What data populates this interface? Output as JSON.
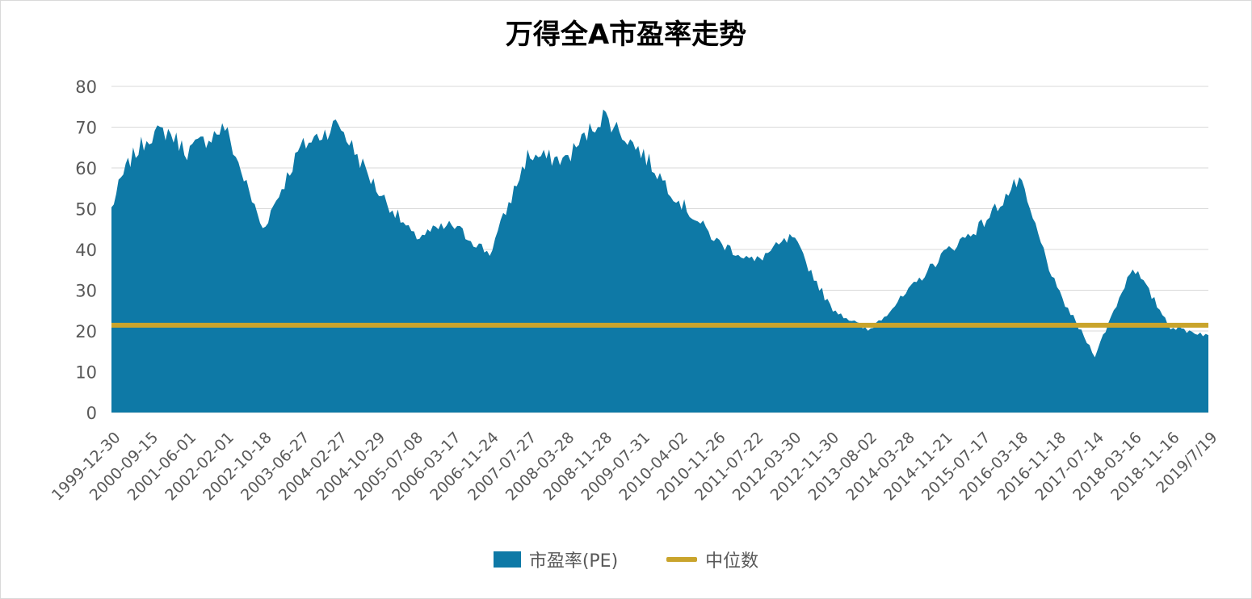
{
  "chart_data": {
    "type": "area",
    "title": "万得全A市盈率走势",
    "xlabel": "",
    "ylabel": "",
    "ylim": [
      0,
      80
    ],
    "yticks": [
      0,
      10,
      20,
      30,
      40,
      50,
      60,
      70,
      80
    ],
    "grid": true,
    "legend_position": "bottom",
    "colors": {
      "pe": "#0e79a6",
      "median": "#c9a42c",
      "grid": "#d9d9d9",
      "axis_text": "#595959"
    },
    "x_tick_labels": [
      "1999-12-30",
      "2000-09-15",
      "2001-06-01",
      "2002-02-01",
      "2002-10-18",
      "2003-06-27",
      "2004-02-27",
      "2004-10-29",
      "2005-07-08",
      "2006-03-17",
      "2006-11-24",
      "2007-07-27",
      "2008-03-28",
      "2008-11-28",
      "2009-07-31",
      "2010-04-02",
      "2010-11-26",
      "2011-07-22",
      "2012-03-30",
      "2012-11-30",
      "2013-08-02",
      "2014-03-28",
      "2014-11-21",
      "2015-07-17",
      "2016-03-18",
      "2016-11-18",
      "2017-07-14",
      "2018-03-16",
      "2018-11-16",
      "2019/7/19"
    ],
    "series": [
      {
        "name": "市盈率(PE)",
        "kind": "area",
        "x": [
          0,
          0.25,
          0.5,
          1,
          1.5,
          2,
          3,
          4,
          5,
          6,
          7,
          8,
          9,
          10,
          11,
          12,
          13,
          14,
          15,
          16,
          17,
          18,
          19,
          20,
          21,
          22,
          23,
          24,
          25,
          26,
          27,
          28,
          29
        ],
        "values": [
          50,
          57,
          62,
          68,
          69,
          64,
          70,
          45,
          65,
          71,
          55,
          43,
          46,
          39,
          63,
          62,
          73,
          64,
          52,
          42,
          37,
          43,
          26,
          20,
          29,
          39,
          46,
          57,
          30,
          14,
          36,
          21,
          19
        ]
      },
      {
        "name": "中位数",
        "kind": "line",
        "value": 21.4
      }
    ]
  }
}
